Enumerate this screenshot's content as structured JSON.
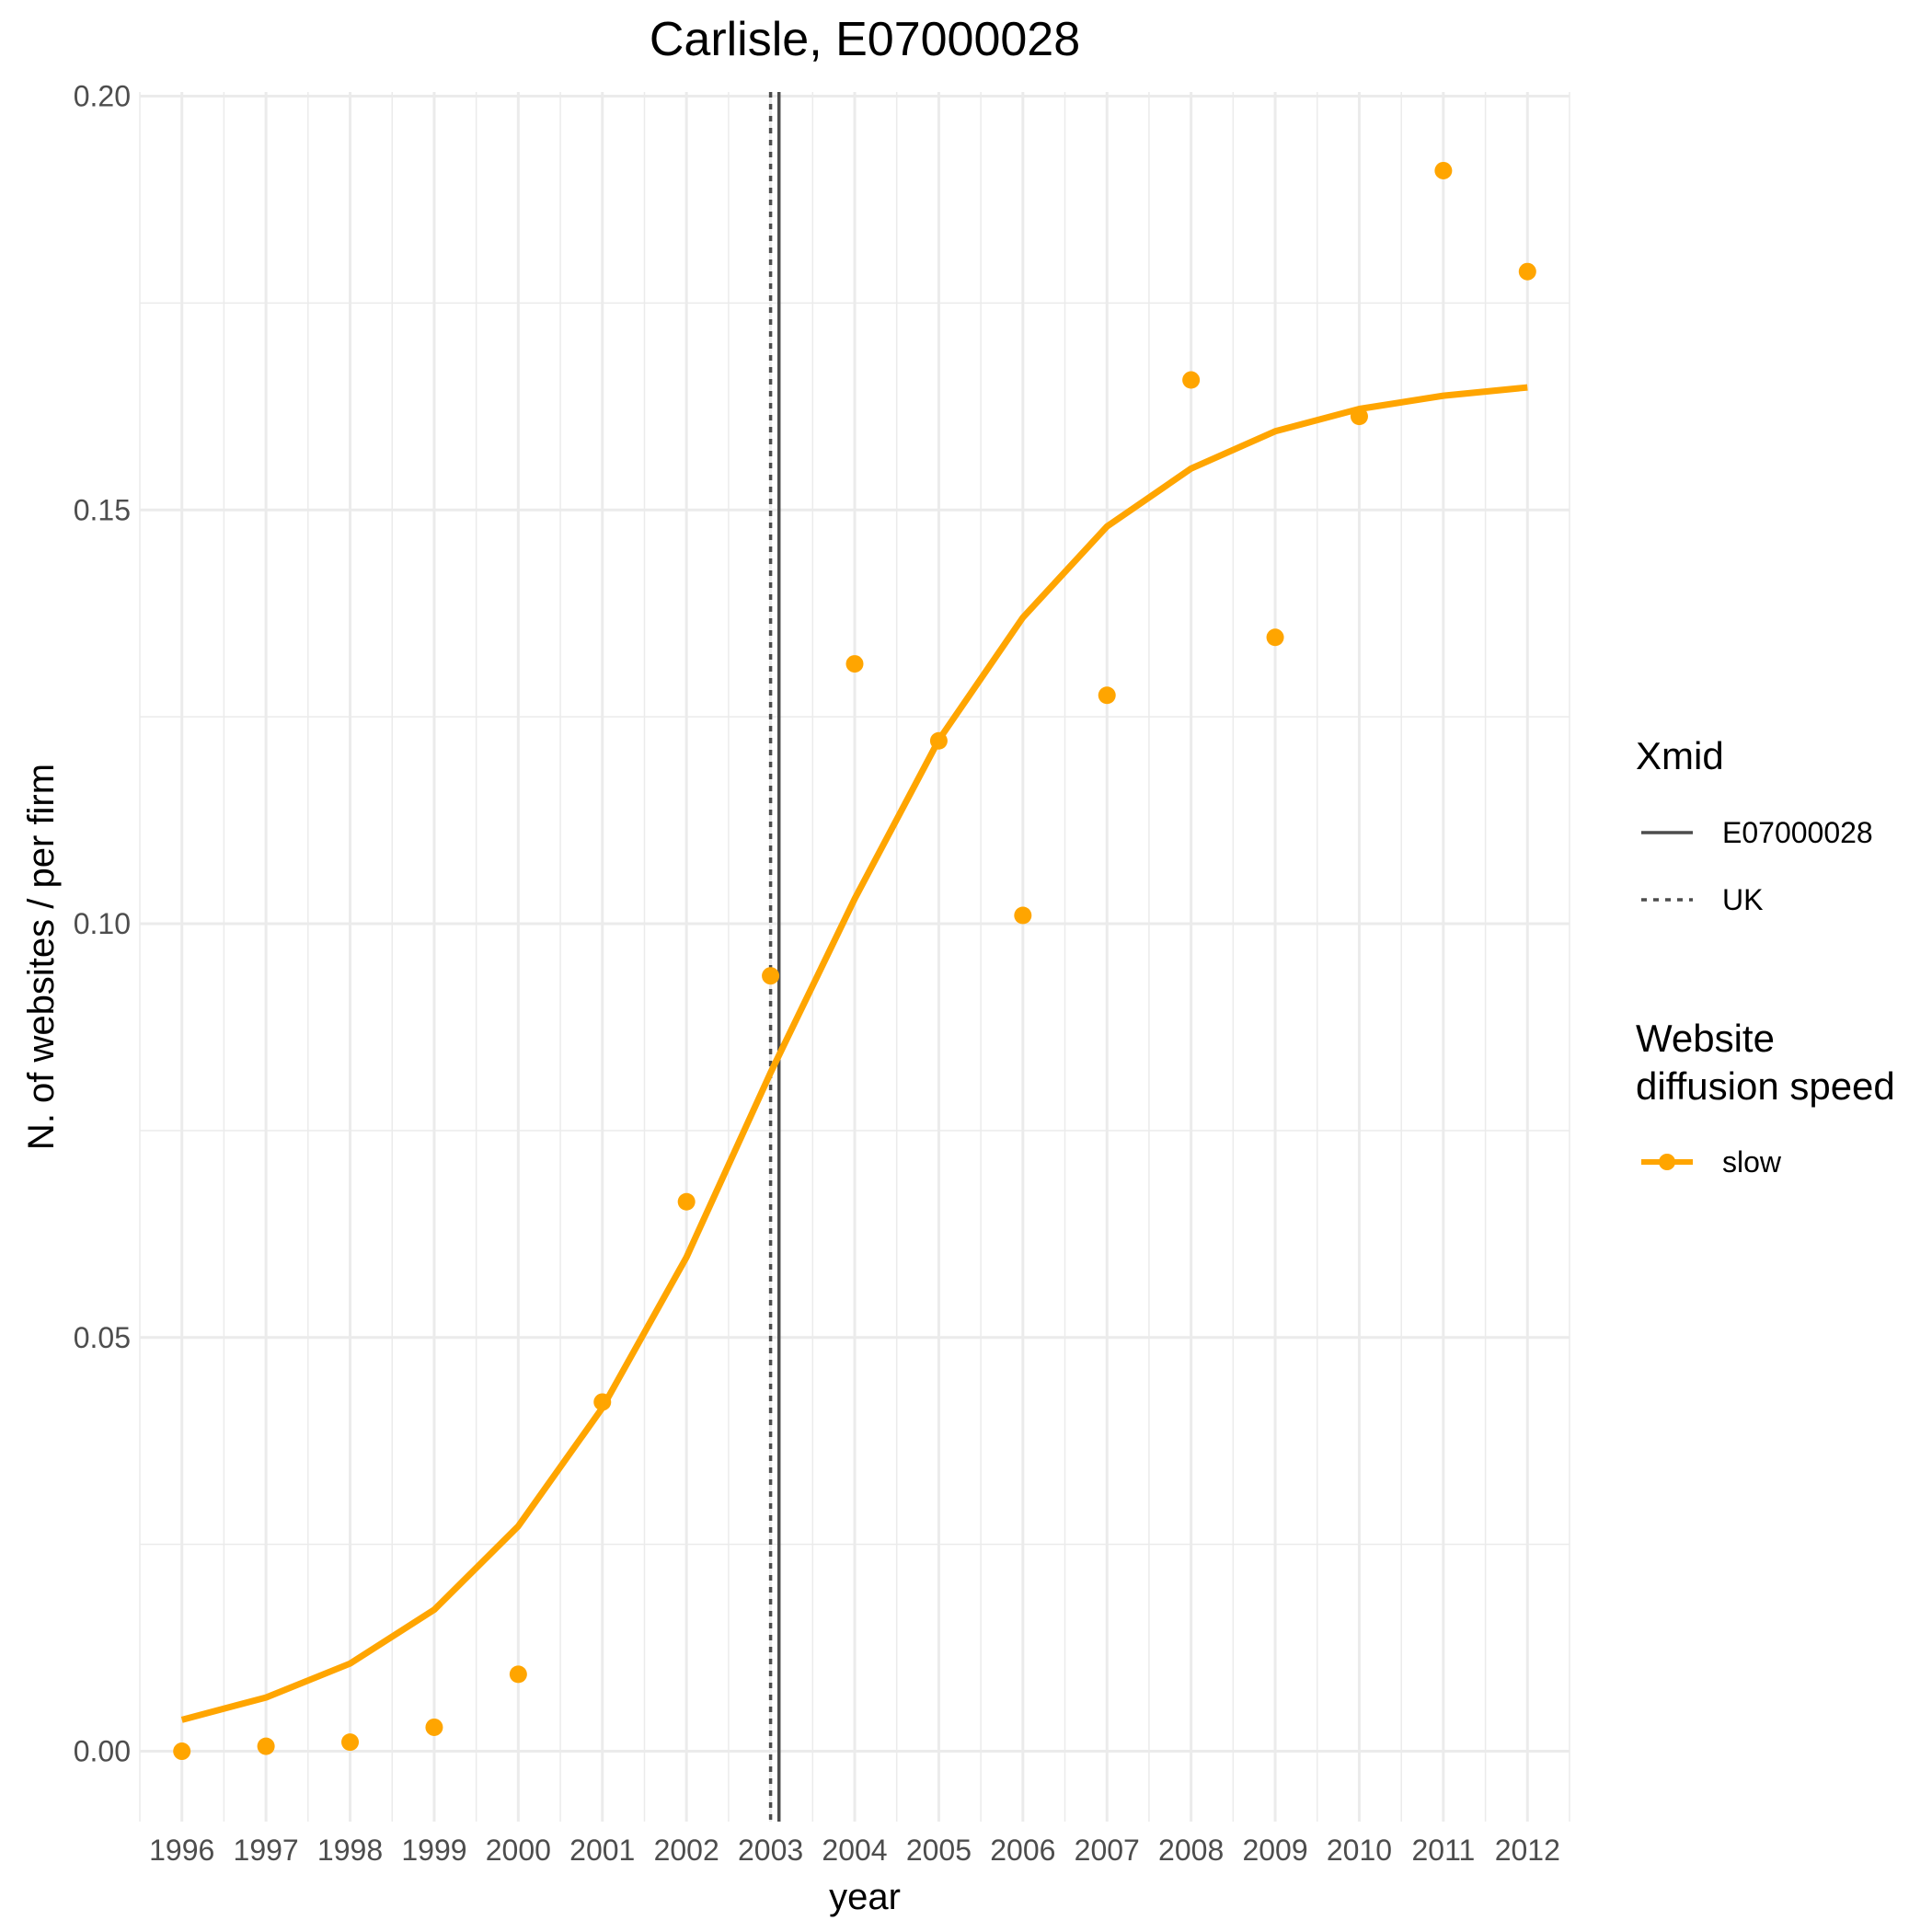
{
  "chart_data": {
    "type": "scatter",
    "title": "Carlisle, E07000028",
    "xlabel": "year",
    "ylabel": "N. of websites / per firm",
    "x_ticks": [
      1996,
      1997,
      1998,
      1999,
      2000,
      2001,
      2002,
      2003,
      2004,
      2005,
      2006,
      2007,
      2008,
      2009,
      2010,
      2011,
      2012
    ],
    "y_ticks": [
      0.0,
      0.05,
      0.1,
      0.15,
      0.2
    ],
    "y_tick_labels": [
      "0.00",
      "0.05",
      "0.10",
      "0.15",
      "0.20"
    ],
    "xlim": [
      1995.5,
      2012.5
    ],
    "ylim": [
      -0.0085,
      0.2005
    ],
    "grid": true,
    "legend_placement": "right",
    "points": {
      "name": "slow",
      "color": "#FFA500",
      "x": [
        1996,
        1997,
        1998,
        1999,
        2000,
        2001,
        2002,
        2003,
        2004,
        2005,
        2006,
        2007,
        2008,
        2009,
        2010,
        2011,
        2012
      ],
      "y": [
        0.0,
        0.0006,
        0.0011,
        0.0029,
        0.0093,
        0.0422,
        0.0664,
        0.0937,
        0.1314,
        0.1221,
        0.101,
        0.1276,
        0.1657,
        0.1346,
        0.1613,
        0.191,
        0.1788
      ]
    },
    "fit_line": {
      "name": "slow",
      "color": "#FFA500",
      "x": [
        1996,
        1997,
        1998,
        1999,
        2000,
        2001,
        2002,
        2003,
        2004,
        2005,
        2006,
        2007,
        2008,
        2009,
        2010,
        2011,
        2012
      ],
      "y": [
        0.0038,
        0.0065,
        0.0106,
        0.0171,
        0.0272,
        0.0415,
        0.0597,
        0.082,
        0.103,
        0.1222,
        0.137,
        0.148,
        0.155,
        0.1595,
        0.1622,
        0.1638,
        0.1648
      ]
    },
    "vlines": [
      {
        "name": "E07000028",
        "x": 2003.1,
        "style": "solid",
        "color": "#4d4d4d"
      },
      {
        "name": "UK",
        "x": 2003.0,
        "style": "dotted",
        "color": "#4d4d4d"
      }
    ],
    "legends": [
      {
        "title": "Xmid",
        "entries": [
          "E07000028",
          "UK"
        ]
      },
      {
        "title_lines": [
          "Website",
          "diffusion speed"
        ],
        "entries": [
          "slow"
        ]
      }
    ]
  }
}
